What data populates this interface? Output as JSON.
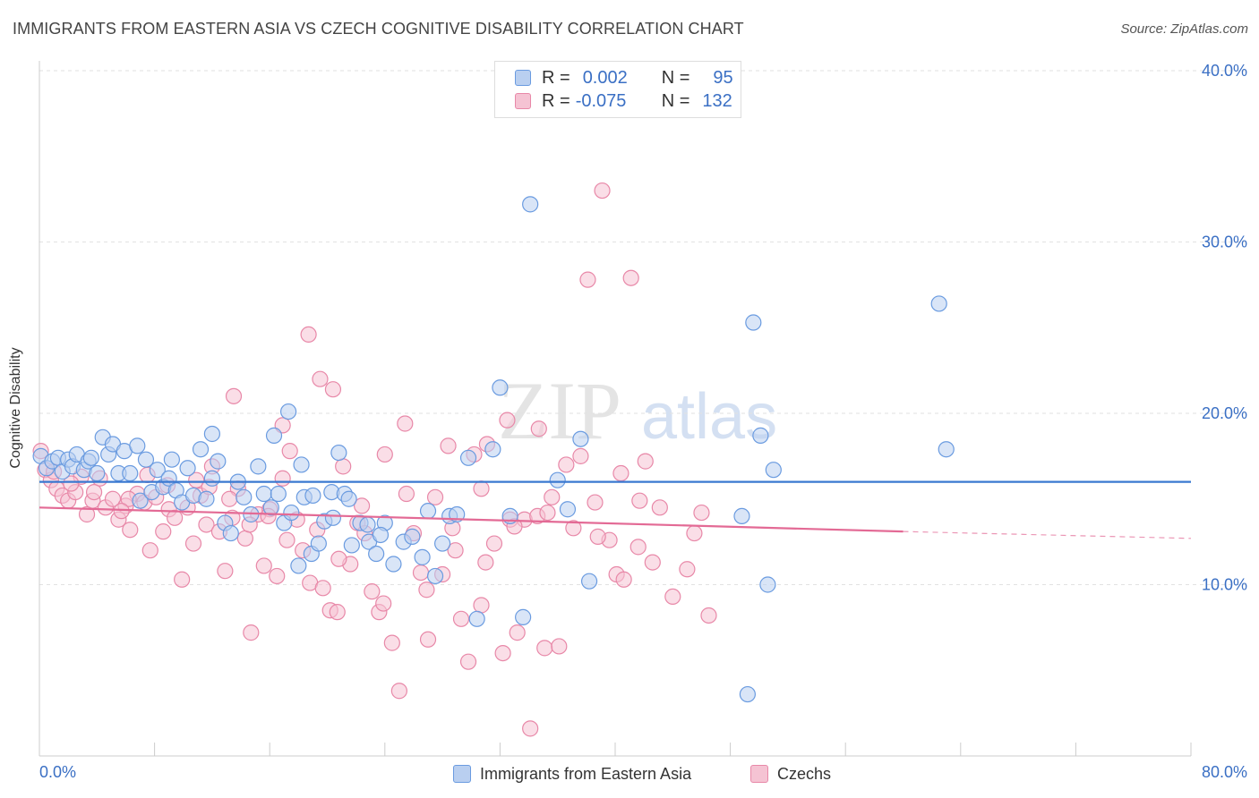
{
  "header": {
    "title": "IMMIGRANTS FROM EASTERN ASIA VS CZECH COGNITIVE DISABILITY CORRELATION CHART",
    "source": "Source: ZipAtlas.com"
  },
  "legend": {
    "r_label": "R =",
    "n_label": "N =",
    "rows": [
      {
        "r": "0.002",
        "n": "95"
      },
      {
        "r": "-0.075",
        "n": "132"
      }
    ]
  },
  "watermark": {
    "zip": "ZIP",
    "atlas": "atlas"
  },
  "colors": {
    "blue_fill": "#b9cff0",
    "blue_stroke": "#6a9be0",
    "blue_line": "#3a78d0",
    "pink_fill": "#f5c3d3",
    "pink_stroke": "#e888a8",
    "pink_line": "#e36a95",
    "tick_label": "#3a6fc4",
    "grid": "#e2e2e2"
  },
  "chart_data": {
    "type": "scatter",
    "title": "IMMIGRANTS FROM EASTERN ASIA VS CZECH COGNITIVE DISABILITY CORRELATION CHART",
    "xlabel": "",
    "ylabel": "Cognitive Disability",
    "xlim": [
      0,
      80
    ],
    "ylim": [
      0,
      40
    ],
    "x_tick_labels": [
      "0.0%",
      "80.0%"
    ],
    "y_ticks": [
      10,
      20,
      30,
      40
    ],
    "y_tick_labels": [
      "10.0%",
      "20.0%",
      "30.0%",
      "40.0%"
    ],
    "grid": true,
    "legend_position": "bottom",
    "series": [
      {
        "name": "Immigrants from Eastern Asia",
        "color": "#6a9be0",
        "trend": {
          "x": [
            0,
            80
          ],
          "y": [
            16.0,
            16.0
          ]
        },
        "points": [
          [
            0.1,
            17.5
          ],
          [
            0.5,
            16.8
          ],
          [
            0.9,
            17.2
          ],
          [
            1.3,
            17.4
          ],
          [
            1.6,
            16.6
          ],
          [
            2.0,
            17.3
          ],
          [
            2.3,
            16.9
          ],
          [
            2.6,
            17.6
          ],
          [
            3.1,
            16.7
          ],
          [
            3.4,
            17.2
          ],
          [
            3.6,
            17.4
          ],
          [
            4.0,
            16.5
          ],
          [
            4.4,
            18.6
          ],
          [
            4.8,
            17.6
          ],
          [
            5.1,
            18.2
          ],
          [
            5.5,
            16.5
          ],
          [
            5.9,
            17.8
          ],
          [
            6.3,
            16.5
          ],
          [
            6.8,
            18.1
          ],
          [
            7.0,
            14.9
          ],
          [
            7.4,
            17.3
          ],
          [
            7.8,
            15.4
          ],
          [
            8.2,
            16.7
          ],
          [
            8.6,
            15.7
          ],
          [
            9.0,
            16.2
          ],
          [
            9.5,
            15.5
          ],
          [
            9.9,
            14.8
          ],
          [
            10.3,
            16.8
          ],
          [
            10.7,
            15.2
          ],
          [
            11.2,
            17.9
          ],
          [
            11.6,
            15.0
          ],
          [
            12.0,
            18.8
          ],
          [
            12.4,
            17.2
          ],
          [
            12.9,
            13.6
          ],
          [
            13.3,
            13.0
          ],
          [
            13.8,
            16.0
          ],
          [
            14.2,
            15.1
          ],
          [
            14.7,
            14.1
          ],
          [
            15.2,
            16.9
          ],
          [
            15.6,
            15.3
          ],
          [
            16.1,
            14.5
          ],
          [
            16.6,
            15.3
          ],
          [
            17.0,
            13.6
          ],
          [
            17.5,
            14.2
          ],
          [
            18.0,
            11.1
          ],
          [
            18.4,
            15.1
          ],
          [
            18.9,
            11.8
          ],
          [
            19.4,
            12.4
          ],
          [
            19.8,
            13.7
          ],
          [
            20.3,
            15.4
          ],
          [
            20.8,
            17.7
          ],
          [
            21.2,
            15.3
          ],
          [
            21.7,
            12.3
          ],
          [
            22.3,
            13.6
          ],
          [
            22.9,
            12.5
          ],
          [
            23.4,
            11.8
          ],
          [
            24.0,
            13.6
          ],
          [
            24.6,
            11.2
          ],
          [
            25.3,
            12.5
          ],
          [
            25.9,
            12.8
          ],
          [
            26.6,
            11.6
          ],
          [
            27.0,
            14.3
          ],
          [
            27.5,
            10.5
          ],
          [
            28.0,
            12.4
          ],
          [
            28.5,
            14.0
          ],
          [
            29.0,
            14.1
          ],
          [
            29.8,
            17.4
          ],
          [
            30.4,
            8.0
          ],
          [
            31.5,
            17.9
          ],
          [
            32.0,
            21.5
          ],
          [
            32.7,
            14.0
          ],
          [
            33.6,
            8.1
          ],
          [
            34.1,
            32.2
          ],
          [
            36.0,
            16.1
          ],
          [
            36.7,
            14.4
          ],
          [
            37.6,
            18.5
          ],
          [
            38.2,
            10.2
          ],
          [
            48.8,
            14.0
          ],
          [
            49.2,
            3.6
          ],
          [
            49.6,
            25.3
          ],
          [
            50.1,
            18.7
          ],
          [
            50.6,
            10.0
          ],
          [
            51.0,
            16.7
          ],
          [
            62.5,
            26.4
          ],
          [
            63.0,
            17.9
          ],
          [
            9.2,
            17.3
          ],
          [
            12.0,
            16.2
          ],
          [
            16.3,
            18.7
          ],
          [
            17.3,
            20.1
          ],
          [
            18.2,
            17.0
          ],
          [
            19.0,
            15.2
          ],
          [
            20.4,
            13.9
          ],
          [
            21.5,
            15.0
          ],
          [
            22.8,
            13.5
          ],
          [
            23.7,
            12.9
          ]
        ]
      },
      {
        "name": "Czechs",
        "color": "#e888a8",
        "trend": {
          "x": [
            0,
            60,
            80
          ],
          "y": [
            14.5,
            13.1,
            12.7
          ],
          "dashed_from": 60
        },
        "points": [
          [
            0.1,
            17.8
          ],
          [
            0.4,
            16.7
          ],
          [
            0.8,
            16.1
          ],
          [
            1.2,
            15.6
          ],
          [
            1.6,
            15.2
          ],
          [
            2.0,
            14.9
          ],
          [
            2.5,
            15.4
          ],
          [
            2.9,
            16.3
          ],
          [
            3.3,
            14.1
          ],
          [
            3.7,
            14.9
          ],
          [
            4.2,
            16.2
          ],
          [
            4.6,
            14.5
          ],
          [
            5.1,
            15.0
          ],
          [
            5.5,
            13.8
          ],
          [
            6.0,
            14.6
          ],
          [
            6.3,
            13.2
          ],
          [
            6.8,
            15.3
          ],
          [
            7.3,
            14.8
          ],
          [
            7.7,
            12.0
          ],
          [
            8.1,
            15.1
          ],
          [
            8.6,
            13.1
          ],
          [
            9.0,
            14.4
          ],
          [
            9.4,
            13.9
          ],
          [
            9.9,
            10.3
          ],
          [
            10.3,
            14.5
          ],
          [
            10.7,
            12.4
          ],
          [
            11.2,
            15.2
          ],
          [
            11.6,
            13.5
          ],
          [
            12.0,
            16.9
          ],
          [
            12.5,
            13.1
          ],
          [
            12.9,
            10.8
          ],
          [
            13.4,
            13.9
          ],
          [
            13.8,
            15.6
          ],
          [
            14.3,
            12.7
          ],
          [
            14.7,
            7.2
          ],
          [
            15.2,
            14.1
          ],
          [
            15.6,
            11.1
          ],
          [
            16.0,
            14.4
          ],
          [
            16.5,
            10.5
          ],
          [
            16.9,
            19.3
          ],
          [
            17.4,
            17.8
          ],
          [
            17.9,
            13.8
          ],
          [
            18.3,
            12.0
          ],
          [
            18.8,
            10.1
          ],
          [
            19.3,
            13.2
          ],
          [
            19.7,
            9.8
          ],
          [
            20.2,
            8.5
          ],
          [
            20.7,
            8.4
          ],
          [
            21.1,
            16.9
          ],
          [
            21.6,
            11.2
          ],
          [
            22.1,
            13.6
          ],
          [
            22.6,
            13.0
          ],
          [
            23.1,
            9.6
          ],
          [
            23.6,
            8.4
          ],
          [
            24.0,
            17.6
          ],
          [
            24.5,
            6.6
          ],
          [
            25.0,
            3.8
          ],
          [
            25.5,
            15.3
          ],
          [
            26.0,
            13.0
          ],
          [
            26.5,
            10.7
          ],
          [
            27.0,
            6.8
          ],
          [
            27.5,
            15.1
          ],
          [
            28.0,
            10.6
          ],
          [
            28.4,
            18.1
          ],
          [
            28.9,
            12.0
          ],
          [
            29.3,
            8.0
          ],
          [
            29.8,
            5.5
          ],
          [
            30.2,
            17.6
          ],
          [
            30.7,
            8.8
          ],
          [
            31.1,
            18.2
          ],
          [
            31.6,
            12.4
          ],
          [
            32.2,
            6.0
          ],
          [
            32.7,
            13.8
          ],
          [
            33.2,
            7.2
          ],
          [
            33.7,
            13.8
          ],
          [
            34.1,
            1.6
          ],
          [
            34.6,
            14.0
          ],
          [
            35.1,
            6.3
          ],
          [
            35.6,
            15.1
          ],
          [
            36.1,
            6.4
          ],
          [
            36.6,
            17.0
          ],
          [
            37.1,
            13.3
          ],
          [
            37.6,
            17.5
          ],
          [
            38.1,
            27.8
          ],
          [
            38.6,
            14.8
          ],
          [
            39.1,
            33.0
          ],
          [
            39.6,
            12.6
          ],
          [
            40.1,
            10.6
          ],
          [
            40.6,
            10.3
          ],
          [
            41.1,
            27.9
          ],
          [
            41.6,
            12.2
          ],
          [
            42.1,
            17.2
          ],
          [
            42.6,
            11.3
          ],
          [
            43.1,
            14.5
          ],
          [
            44.0,
            9.3
          ],
          [
            45.0,
            10.9
          ],
          [
            46.0,
            14.2
          ],
          [
            46.5,
            8.2
          ],
          [
            6.2,
            15.0
          ],
          [
            18.7,
            24.6
          ],
          [
            19.5,
            22.0
          ],
          [
            20.4,
            21.4
          ],
          [
            13.5,
            21.0
          ],
          [
            16.9,
            16.2
          ],
          [
            30.7,
            15.6
          ],
          [
            33.0,
            13.4
          ],
          [
            34.7,
            19.1
          ],
          [
            35.3,
            14.2
          ],
          [
            38.8,
            12.8
          ],
          [
            40.4,
            16.5
          ],
          [
            41.7,
            14.9
          ],
          [
            45.5,
            13.0
          ],
          [
            20.8,
            11.5
          ],
          [
            22.4,
            14.6
          ],
          [
            23.9,
            8.9
          ],
          [
            25.4,
            19.4
          ],
          [
            26.9,
            9.7
          ],
          [
            28.7,
            13.3
          ],
          [
            31.0,
            11.3
          ],
          [
            32.5,
            19.6
          ],
          [
            1.0,
            16.6
          ],
          [
            2.2,
            15.9
          ],
          [
            3.8,
            15.4
          ],
          [
            5.7,
            14.3
          ],
          [
            7.5,
            16.4
          ],
          [
            8.9,
            15.8
          ],
          [
            10.9,
            16.1
          ],
          [
            11.8,
            15.7
          ],
          [
            13.2,
            15.0
          ],
          [
            14.6,
            13.5
          ],
          [
            15.9,
            14.0
          ],
          [
            17.2,
            12.6
          ]
        ]
      }
    ]
  },
  "bottom_legend": [
    {
      "label": "Immigrants from Eastern Asia"
    },
    {
      "label": "Czechs"
    }
  ]
}
